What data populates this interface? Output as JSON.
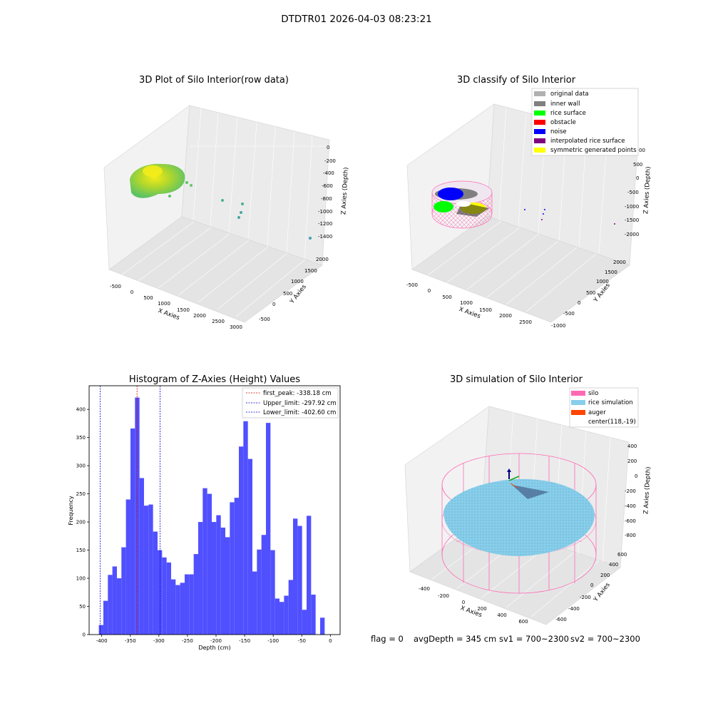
{
  "figure_title": "DTDTR01 2026-04-03 08:23:21",
  "footer": {
    "flag": "flag = 0",
    "avg_depth": "avgDepth = 345 cm",
    "sv1": "sv1 = 700~2300",
    "sv2": "sv2 = 700~2300"
  },
  "colors": {
    "hist_bar": "#5050ff",
    "peak_line": "#d00000",
    "limit_line": "#0000cc",
    "silo": "#ff69b4",
    "rice_sim": "#87ceeb",
    "auger": "#ff4500",
    "rice_surface": "#00ff00",
    "obstacle": "#ff0000",
    "noise": "#0000ff",
    "interp": "#800080",
    "symmetric": "#ffff00",
    "inner_wall": "#808080",
    "original": "#b0b0b0"
  },
  "chart_data": [
    {
      "type": "scatter",
      "title": "3D Plot of Silo Interior(row data)",
      "xlabel": "X Axies",
      "ylabel": "Y Axies",
      "zlabel": "Z Axies (Depth)",
      "x_ticks": [
        "-500",
        "0",
        "500",
        "1000",
        "1500",
        "2000",
        "2500",
        "3000"
      ],
      "y_ticks": [
        "-500",
        "0",
        "500",
        "1000",
        "1500",
        "2000"
      ],
      "z_ticks": [
        "0",
        "-200",
        "-400",
        "-600",
        "-800",
        "-1000",
        "-1200",
        "-1400"
      ]
    },
    {
      "type": "scatter",
      "title": "3D classify of Silo Interior",
      "xlabel": "X Axies",
      "ylabel": "Y Axies",
      "zlabel": "Z Axies (Depth)",
      "x_ticks": [
        "-500",
        "0",
        "500",
        "1000",
        "1500",
        "2000",
        "2500"
      ],
      "y_ticks": [
        "-1000",
        "-500",
        "0",
        "500",
        "1000",
        "1500",
        "2000"
      ],
      "z_ticks": [
        "500",
        "0",
        "-500",
        "-1000",
        "-1500",
        "-2000"
      ],
      "z_top_partial": "00",
      "legend": [
        "original data",
        "inner wall",
        "rice surface",
        "obstacle",
        "noise",
        "interpolated rice surface",
        "symmetric generated points"
      ]
    },
    {
      "type": "bar",
      "title": "Histogram of Z-Axies (Height) Values",
      "xlabel": "Depth (cm)",
      "ylabel": "Frequency",
      "xlim": [
        -422,
        17
      ],
      "ylim": [
        0,
        442
      ],
      "bin_start": -405,
      "bin_width": 7.9,
      "values": [
        17,
        60,
        106,
        121,
        100,
        155,
        240,
        366,
        421,
        278,
        229,
        231,
        183,
        150,
        137,
        128,
        98,
        88,
        92,
        107,
        107,
        143,
        200,
        260,
        250,
        200,
        212,
        190,
        173,
        235,
        243,
        334,
        379,
        312,
        112,
        151,
        177,
        376,
        150,
        64,
        58,
        69,
        97,
        206,
        193,
        44,
        211,
        71,
        0,
        30
      ],
      "x_ticks": [
        -400,
        -350,
        -300,
        -250,
        -200,
        -150,
        -100,
        -50,
        0
      ],
      "y_ticks": [
        0,
        50,
        100,
        150,
        200,
        250,
        300,
        350,
        400
      ],
      "lines": [
        {
          "label": "first_peak: -338.18 cm",
          "x": -338.18,
          "color": "red"
        },
        {
          "label": "Upper_limit: -297.92 cm",
          "x": -297.92,
          "color": "blue"
        },
        {
          "label": "Lower_limit: -402.60 cm",
          "x": -402.6,
          "color": "blue"
        }
      ]
    },
    {
      "type": "scatter",
      "title": "3D simulation of Silo Interior",
      "xlabel": "X Axies",
      "ylabel": "Y Axies",
      "zlabel": "Z Axies (Depth)",
      "x_ticks": [
        "-400",
        "-200",
        "0",
        "200",
        "400",
        "600"
      ],
      "y_ticks": [
        "-600",
        "-400",
        "-200",
        "0",
        "200",
        "400",
        "600"
      ],
      "z_ticks": [
        "400",
        "200",
        "0",
        "-200",
        "-400",
        "-600",
        "-800"
      ],
      "legend": [
        "silo",
        "rice simulation",
        "auger",
        "center(118,-19)"
      ]
    }
  ]
}
